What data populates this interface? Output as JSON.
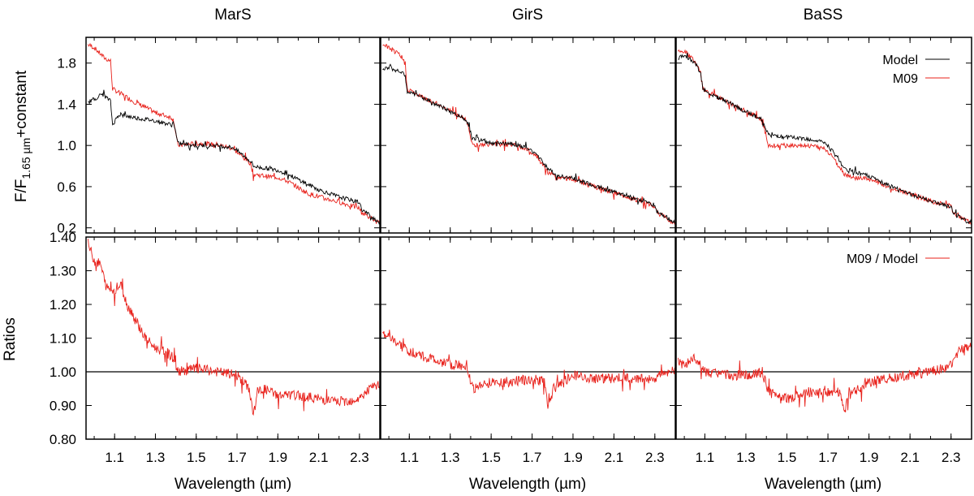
{
  "chart_data": {
    "type": "line",
    "colors": {
      "model": "#000000",
      "m09": "#e8201a",
      "ratio": "#e8201a"
    },
    "panels": [
      {
        "title": "MarS",
        "model": [
          [
            0.97,
            1.42
          ],
          [
            1.0,
            1.45
          ],
          [
            1.04,
            1.5
          ],
          [
            1.08,
            1.43
          ],
          [
            1.09,
            1.2
          ],
          [
            1.12,
            1.3
          ],
          [
            1.2,
            1.27
          ],
          [
            1.3,
            1.24
          ],
          [
            1.38,
            1.2
          ],
          [
            1.39,
            1.22
          ],
          [
            1.41,
            1.02
          ],
          [
            1.5,
            1.0
          ],
          [
            1.6,
            1.0
          ],
          [
            1.68,
            0.98
          ],
          [
            1.72,
            0.92
          ],
          [
            1.77,
            0.84
          ],
          [
            1.78,
            0.8
          ],
          [
            1.8,
            0.79
          ],
          [
            1.9,
            0.76
          ],
          [
            1.95,
            0.72
          ],
          [
            2.05,
            0.62
          ],
          [
            2.1,
            0.57
          ],
          [
            2.2,
            0.5
          ],
          [
            2.3,
            0.45
          ],
          [
            2.31,
            0.38
          ],
          [
            2.4,
            0.25
          ]
        ],
        "m09": [
          [
            0.97,
            1.98
          ],
          [
            1.0,
            1.95
          ],
          [
            1.05,
            1.85
          ],
          [
            1.08,
            1.82
          ],
          [
            1.09,
            1.55
          ],
          [
            1.15,
            1.48
          ],
          [
            1.2,
            1.42
          ],
          [
            1.3,
            1.32
          ],
          [
            1.38,
            1.27
          ],
          [
            1.39,
            1.24
          ],
          [
            1.41,
            1.0
          ],
          [
            1.5,
            1.02
          ],
          [
            1.6,
            1.01
          ],
          [
            1.68,
            0.97
          ],
          [
            1.72,
            0.9
          ],
          [
            1.77,
            0.82
          ],
          [
            1.78,
            0.72
          ],
          [
            1.85,
            0.7
          ],
          [
            1.9,
            0.69
          ],
          [
            1.95,
            0.65
          ],
          [
            2.05,
            0.53
          ],
          [
            2.2,
            0.45
          ],
          [
            2.3,
            0.39
          ],
          [
            2.31,
            0.35
          ],
          [
            2.4,
            0.24
          ]
        ],
        "ratio": [
          [
            0.97,
            1.38
          ],
          [
            1.0,
            1.33
          ],
          [
            1.03,
            1.32
          ],
          [
            1.06,
            1.25
          ],
          [
            1.1,
            1.24
          ],
          [
            1.13,
            1.26
          ],
          [
            1.16,
            1.2
          ],
          [
            1.2,
            1.16
          ],
          [
            1.25,
            1.1
          ],
          [
            1.3,
            1.07
          ],
          [
            1.35,
            1.06
          ],
          [
            1.39,
            1.04
          ],
          [
            1.41,
            1.0
          ],
          [
            1.5,
            1.01
          ],
          [
            1.6,
            1.0
          ],
          [
            1.7,
            0.99
          ],
          [
            1.76,
            0.95
          ],
          [
            1.78,
            0.87
          ],
          [
            1.8,
            0.94
          ],
          [
            1.83,
            0.95
          ],
          [
            1.9,
            0.93
          ],
          [
            2.0,
            0.93
          ],
          [
            2.1,
            0.92
          ],
          [
            2.2,
            0.91
          ],
          [
            2.3,
            0.92
          ],
          [
            2.35,
            0.95
          ],
          [
            2.4,
            0.96
          ]
        ]
      },
      {
        "title": "GirS",
        "model": [
          [
            0.97,
            1.75
          ],
          [
            1.0,
            1.76
          ],
          [
            1.05,
            1.72
          ],
          [
            1.08,
            1.68
          ],
          [
            1.09,
            1.52
          ],
          [
            1.15,
            1.48
          ],
          [
            1.25,
            1.38
          ],
          [
            1.38,
            1.25
          ],
          [
            1.41,
            1.07
          ],
          [
            1.5,
            1.02
          ],
          [
            1.6,
            1.02
          ],
          [
            1.68,
            0.97
          ],
          [
            1.72,
            0.92
          ],
          [
            1.78,
            0.77
          ],
          [
            1.82,
            0.71
          ],
          [
            1.9,
            0.68
          ],
          [
            2.0,
            0.61
          ],
          [
            2.1,
            0.55
          ],
          [
            2.2,
            0.49
          ],
          [
            2.3,
            0.42
          ],
          [
            2.31,
            0.36
          ],
          [
            2.4,
            0.25
          ]
        ],
        "m09": [
          [
            0.97,
            1.98
          ],
          [
            1.0,
            1.95
          ],
          [
            1.05,
            1.88
          ],
          [
            1.08,
            1.8
          ],
          [
            1.09,
            1.55
          ],
          [
            1.15,
            1.48
          ],
          [
            1.25,
            1.39
          ],
          [
            1.38,
            1.25
          ],
          [
            1.41,
            1.0
          ],
          [
            1.5,
            1.01
          ],
          [
            1.6,
            1.01
          ],
          [
            1.68,
            0.96
          ],
          [
            1.72,
            0.9
          ],
          [
            1.78,
            0.73
          ],
          [
            1.82,
            0.69
          ],
          [
            1.9,
            0.67
          ],
          [
            2.0,
            0.6
          ],
          [
            2.1,
            0.54
          ],
          [
            2.2,
            0.48
          ],
          [
            2.3,
            0.41
          ],
          [
            2.31,
            0.35
          ],
          [
            2.4,
            0.24
          ]
        ],
        "ratio": [
          [
            0.97,
            1.12
          ],
          [
            1.0,
            1.1
          ],
          [
            1.05,
            1.08
          ],
          [
            1.1,
            1.06
          ],
          [
            1.2,
            1.04
          ],
          [
            1.3,
            1.02
          ],
          [
            1.38,
            1.02
          ],
          [
            1.41,
            0.95
          ],
          [
            1.5,
            0.97
          ],
          [
            1.6,
            0.97
          ],
          [
            1.7,
            0.98
          ],
          [
            1.76,
            0.97
          ],
          [
            1.78,
            0.89
          ],
          [
            1.8,
            0.95
          ],
          [
            1.83,
            0.96
          ],
          [
            1.9,
            0.99
          ],
          [
            2.0,
            0.98
          ],
          [
            2.1,
            0.98
          ],
          [
            2.2,
            0.98
          ],
          [
            2.3,
            0.98
          ],
          [
            2.35,
            1.0
          ],
          [
            2.4,
            1.0
          ]
        ]
      },
      {
        "title": "BaSS",
        "model": [
          [
            0.97,
            1.85
          ],
          [
            1.0,
            1.88
          ],
          [
            1.05,
            1.8
          ],
          [
            1.08,
            1.7
          ],
          [
            1.09,
            1.55
          ],
          [
            1.15,
            1.48
          ],
          [
            1.25,
            1.38
          ],
          [
            1.38,
            1.25
          ],
          [
            1.41,
            1.1
          ],
          [
            1.5,
            1.08
          ],
          [
            1.6,
            1.06
          ],
          [
            1.68,
            1.03
          ],
          [
            1.72,
            0.95
          ],
          [
            1.78,
            0.78
          ],
          [
            1.82,
            0.75
          ],
          [
            1.9,
            0.7
          ],
          [
            2.0,
            0.61
          ],
          [
            2.1,
            0.53
          ],
          [
            2.2,
            0.46
          ],
          [
            2.3,
            0.4
          ],
          [
            2.31,
            0.34
          ],
          [
            2.4,
            0.24
          ]
        ],
        "m09": [
          [
            0.97,
            1.92
          ],
          [
            1.0,
            1.92
          ],
          [
            1.05,
            1.82
          ],
          [
            1.08,
            1.72
          ],
          [
            1.09,
            1.55
          ],
          [
            1.15,
            1.48
          ],
          [
            1.25,
            1.38
          ],
          [
            1.38,
            1.25
          ],
          [
            1.41,
            1.0
          ],
          [
            1.5,
            1.0
          ],
          [
            1.6,
            1.0
          ],
          [
            1.68,
            0.97
          ],
          [
            1.72,
            0.9
          ],
          [
            1.78,
            0.72
          ],
          [
            1.82,
            0.69
          ],
          [
            1.9,
            0.67
          ],
          [
            2.0,
            0.6
          ],
          [
            2.1,
            0.53
          ],
          [
            2.2,
            0.46
          ],
          [
            2.3,
            0.41
          ],
          [
            2.31,
            0.35
          ],
          [
            2.4,
            0.25
          ]
        ],
        "ratio": [
          [
            0.97,
            1.03
          ],
          [
            1.0,
            1.02
          ],
          [
            1.05,
            1.04
          ],
          [
            1.1,
            1.0
          ],
          [
            1.2,
            0.99
          ],
          [
            1.3,
            0.99
          ],
          [
            1.38,
            1.0
          ],
          [
            1.41,
            0.94
          ],
          [
            1.5,
            0.92
          ],
          [
            1.6,
            0.94
          ],
          [
            1.7,
            0.94
          ],
          [
            1.76,
            0.94
          ],
          [
            1.78,
            0.88
          ],
          [
            1.8,
            0.93
          ],
          [
            1.83,
            0.94
          ],
          [
            1.9,
            0.97
          ],
          [
            2.0,
            0.98
          ],
          [
            2.1,
            0.99
          ],
          [
            2.2,
            1.0
          ],
          [
            2.3,
            1.02
          ],
          [
            2.35,
            1.07
          ],
          [
            2.4,
            1.08
          ]
        ]
      }
    ],
    "top_yticks": [
      "0.2",
      "0.6",
      "1.0",
      "1.4",
      "1.8"
    ],
    "top_yvals": [
      0.2,
      0.6,
      1.0,
      1.4,
      1.8
    ],
    "top_ylim": [
      0.15,
      2.05
    ],
    "bottom_yticks": [
      "0.80",
      "0.90",
      "1.00",
      "1.10",
      "1.20",
      "1.30",
      "1.40"
    ],
    "bottom_yvals": [
      0.8,
      0.9,
      1.0,
      1.1,
      1.2,
      1.3,
      1.4
    ],
    "bottom_ylim": [
      0.8,
      1.4
    ],
    "xticks": [
      "1.1",
      "1.3",
      "1.5",
      "1.7",
      "1.9",
      "2.1",
      "2.3"
    ],
    "xvals": [
      1.1,
      1.3,
      1.5,
      1.7,
      1.9,
      2.1,
      2.3
    ],
    "xlim": [
      0.96,
      2.4
    ],
    "reference_line": 1.0,
    "top_ylabel_main": "F/F",
    "top_ylabel_sub": "1.65 µm",
    "top_ylabel_tail": "+constant",
    "bottom_ylabel": "Ratios",
    "xlabel": "Wavelength (µm)",
    "legend_top": [
      "Model",
      "M09"
    ],
    "legend_bottom": "M09 / Model"
  }
}
